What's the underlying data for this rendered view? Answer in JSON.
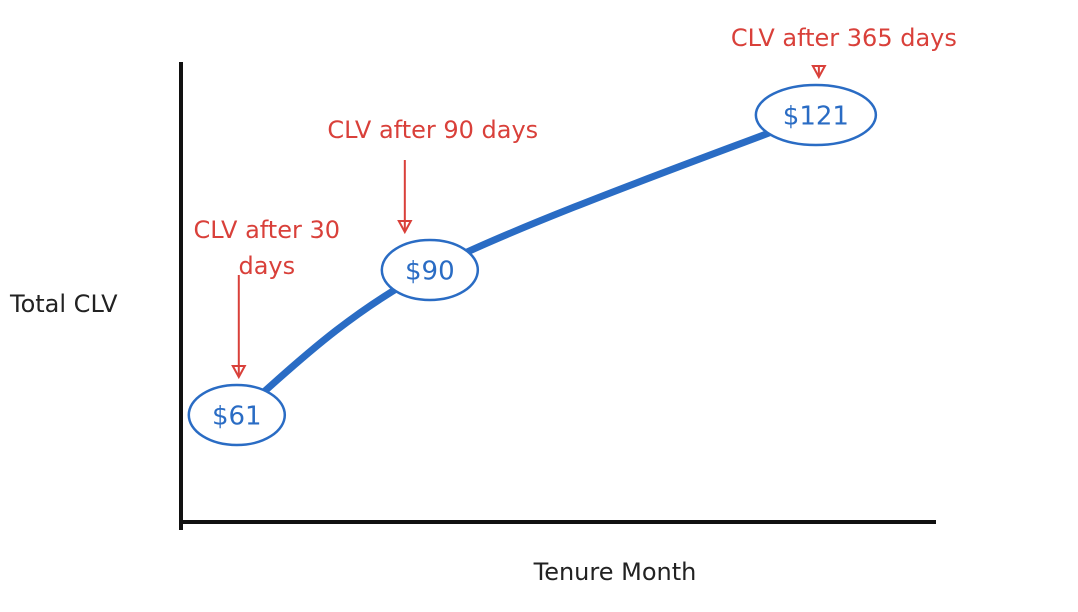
{
  "chart_data": {
    "type": "line",
    "y_label": "Total CLV",
    "x_label": "Tenure Month",
    "categories": [
      "CLV after 30 days",
      "CLV after 90 days",
      "CLV after 365 days"
    ],
    "values": [
      61,
      90,
      121
    ],
    "value_labels": [
      "$61",
      "$90",
      "$121"
    ],
    "color": "#2a6cc4",
    "annotation_color": "#d9403a",
    "ylim": [
      40,
      130
    ]
  }
}
